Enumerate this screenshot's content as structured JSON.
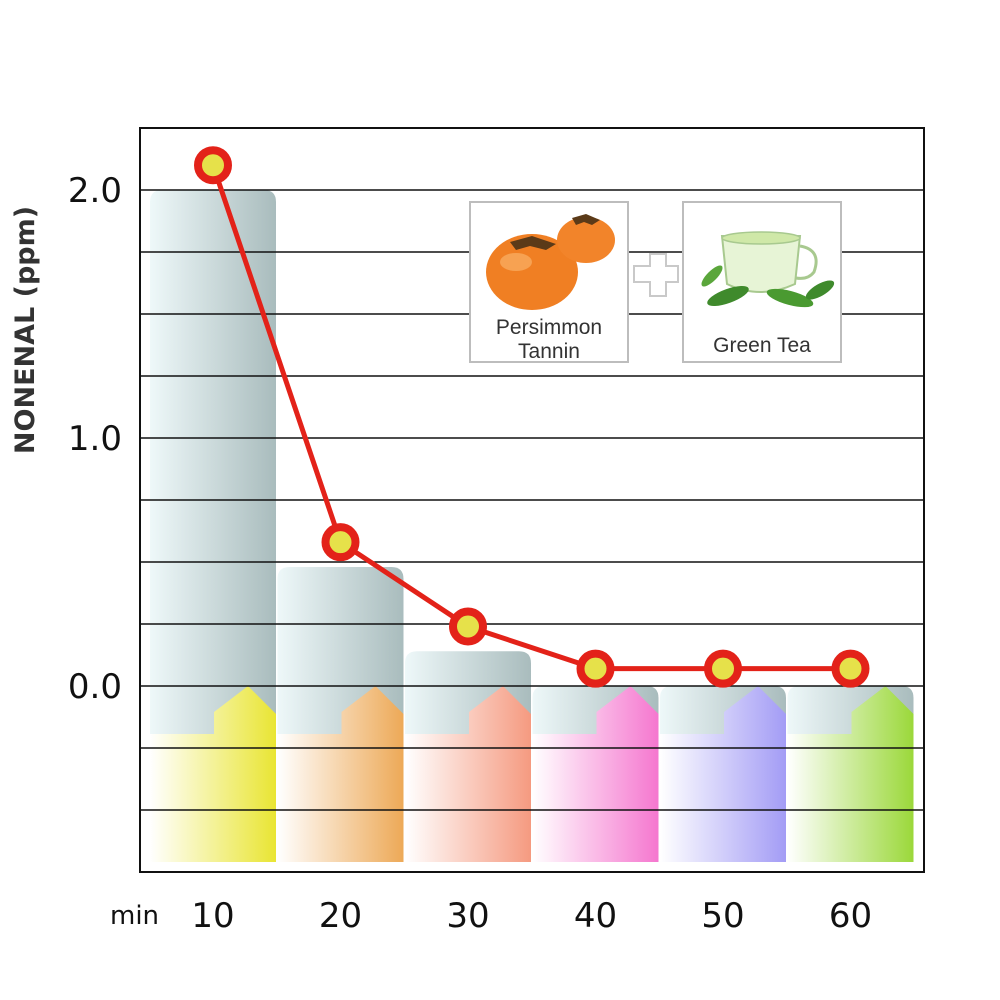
{
  "chart_data": {
    "type": "bar",
    "ylabel": "NONENAL (ppm)",
    "x_unit_label": "min",
    "categories": [
      "10",
      "20",
      "30",
      "40",
      "50",
      "60"
    ],
    "values": [
      2.1,
      0.58,
      0.24,
      0.07,
      0.07,
      0.07
    ],
    "y_ticks": [
      "0.0",
      "1.0",
      "2.0"
    ],
    "ylim": [
      -0.75,
      2.25
    ],
    "grid": true,
    "legend_items": [
      {
        "label": "Persimmon Tannin",
        "icon": "persimmon-icon"
      },
      {
        "label": "Green Tea",
        "icon": "green-tea-icon"
      }
    ],
    "legend_separator": "+",
    "line_color": "#e32219",
    "marker_fill": "#e6e14a",
    "column_colors": [
      "#e9e533",
      "#eda957",
      "#f59a80",
      "#f577cf",
      "#a39cf5",
      "#9bd83a"
    ]
  }
}
